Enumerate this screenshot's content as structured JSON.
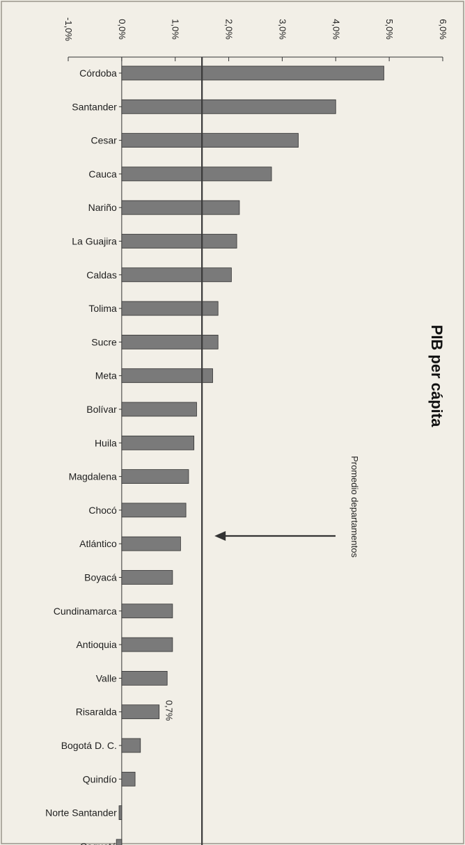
{
  "chart_data": {
    "type": "bar",
    "orientation": "horizontal",
    "title": "PIB per cápita",
    "categories": [
      "Córdoba",
      "Santander",
      "Cesar",
      "Cauca",
      "Nariño",
      "La Guajira",
      "Caldas",
      "Tolima",
      "Sucre",
      "Meta",
      "Bolívar",
      "Huila",
      "Magdalena",
      "Chocó",
      "Atlántico",
      "Boyacá",
      "Cundinamarca",
      "Antioquia",
      "Valle",
      "Risaralda",
      "Bogotá D. C.",
      "Quindío",
      "Norte Santander",
      "Caquetá"
    ],
    "values": [
      4.9,
      4.0,
      3.3,
      2.8,
      2.2,
      2.15,
      2.05,
      1.8,
      1.8,
      1.7,
      1.4,
      1.35,
      1.25,
      1.2,
      1.1,
      0.95,
      0.95,
      0.95,
      0.85,
      0.7,
      0.35,
      0.25,
      -0.05,
      -0.1
    ],
    "data_labels": [
      {
        "category": "Risaralda",
        "text": "0,7%"
      }
    ],
    "value_axis": {
      "min": -1.0,
      "max": 6.0,
      "step": 1.0,
      "tick_labels": [
        "-1,0%",
        "0,0%",
        "1,0%",
        "2,0%",
        "3,0%",
        "4,0%",
        "5,0%",
        "6,0%"
      ]
    },
    "reference_line": {
      "value": 1.5,
      "label": "Promedio departamentos"
    },
    "grid": false,
    "legend": "none",
    "colors": {
      "bar": "#7a7a7a",
      "bar_stroke": "#333333",
      "axis": "#333333",
      "reference_line": "#3a3a3a",
      "background": "#f2efe7"
    }
  }
}
